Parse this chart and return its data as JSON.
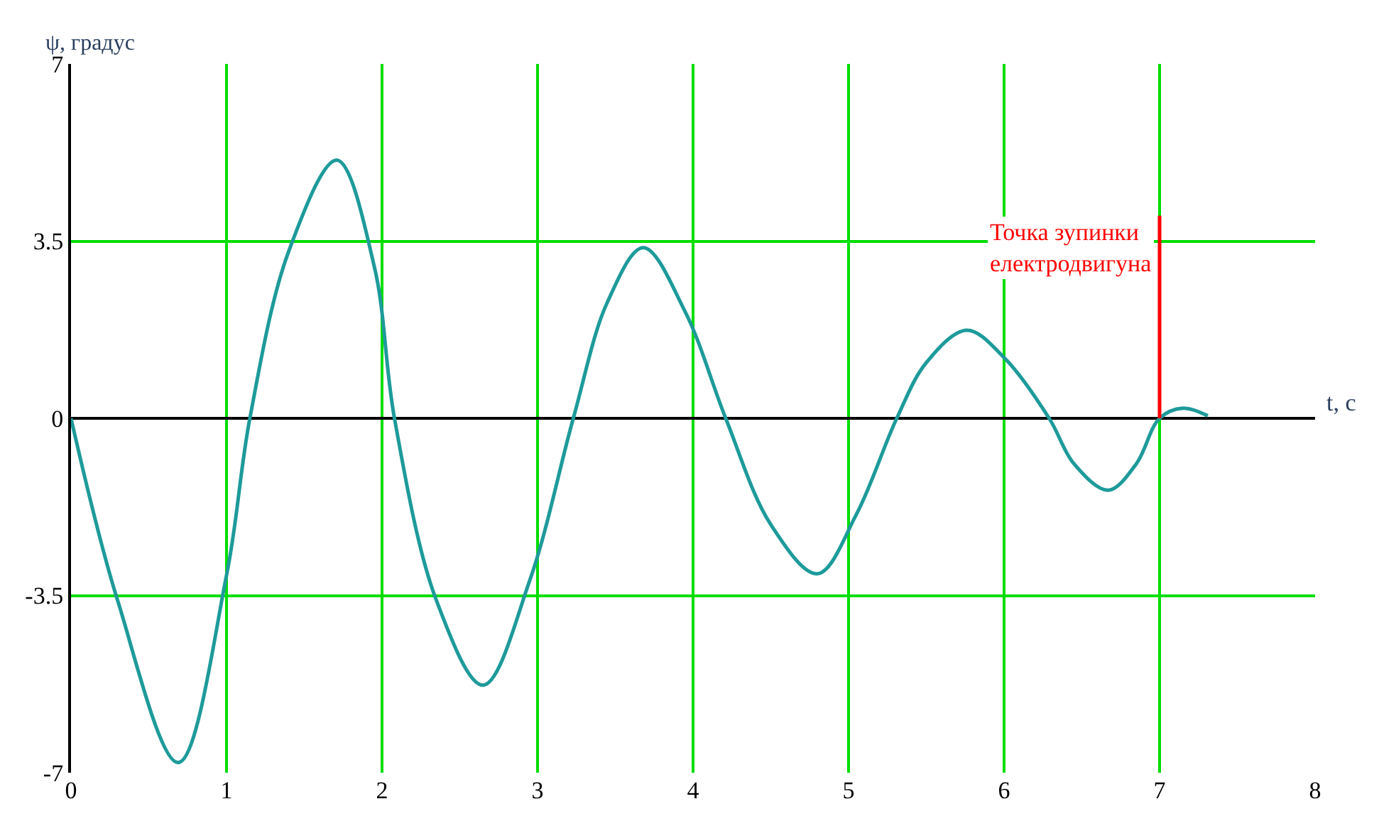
{
  "chart_data": {
    "type": "line",
    "xlabel": "t, с",
    "ylabel": "ψ, градус",
    "xlim": [
      0,
      8
    ],
    "ylim": [
      -7,
      7
    ],
    "xticks": [
      0,
      1,
      2,
      3,
      4,
      5,
      6,
      7,
      8
    ],
    "yticks": [
      -7,
      -3.5,
      0,
      3.5,
      7
    ],
    "grid": true,
    "marker": "none",
    "line_style": "solid",
    "series": [
      {
        "color": "#1e9a9a",
        "x": [
          0,
          0.3,
          0.69,
          1.0,
          1.15,
          1.4,
          1.71,
          1.95,
          2.08,
          2.35,
          2.65,
          2.95,
          3.23,
          3.45,
          3.68,
          3.95,
          4.21,
          4.5,
          4.8,
          5.05,
          5.31,
          5.5,
          5.76,
          6.0,
          6.29,
          6.45,
          6.67,
          6.85,
          7.0,
          7.15,
          7.31
        ],
        "values": [
          0,
          -3.6,
          -6.8,
          -3.1,
          0,
          3.3,
          5.1,
          3.0,
          0,
          -3.6,
          -5.27,
          -3.2,
          0,
          2.3,
          3.37,
          2.1,
          0,
          -2.1,
          -3.07,
          -1.9,
          0,
          1.1,
          1.74,
          1.2,
          0,
          -0.9,
          -1.42,
          -0.9,
          0,
          0.2,
          0.05
        ]
      },
      {
        "color": "#ff0000",
        "x": [
          7,
          7
        ],
        "values": [
          0,
          4
        ]
      }
    ],
    "annotations": [
      {
        "text": "Точка зупинки\nелектродвигуна",
        "x": 7,
        "y": 4
      }
    ]
  }
}
